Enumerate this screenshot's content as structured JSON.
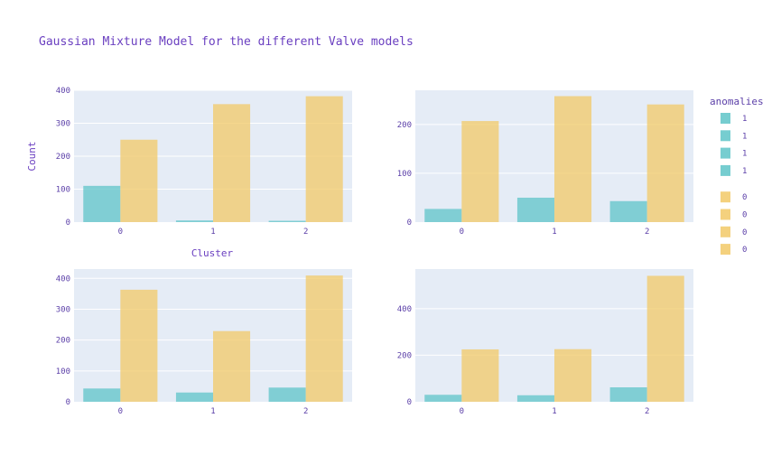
{
  "chart_data": {
    "type": "bar",
    "title": "Gaussian Mixture Model for the different Valve models",
    "xlabel": "Cluster",
    "ylabel": "Count",
    "barmode": "group",
    "legend": {
      "title": "anomalies",
      "placement": "right",
      "entries": [
        {
          "label": "1",
          "color": "#5ec4c8"
        },
        {
          "label": "1",
          "color": "#5ec4c8"
        },
        {
          "label": "1",
          "color": "#5ec4c8"
        },
        {
          "label": "1",
          "color": "#5ec4c8"
        },
        {
          "label": "0",
          "color": "#f2c967"
        },
        {
          "label": "0",
          "color": "#f2c967"
        },
        {
          "label": "0",
          "color": "#f2c967"
        },
        {
          "label": "0",
          "color": "#f2c967"
        }
      ]
    },
    "colors": {
      "anomaly_1": "#5ec4c8",
      "anomaly_0": "#f2c967",
      "plot_bg": "#e5ecf6",
      "text": "#5b3fa8"
    },
    "grid": true,
    "subplots": [
      {
        "categories": [
          "0",
          "1",
          "2"
        ],
        "ylim": [
          0,
          400
        ],
        "yticks": [
          0,
          100,
          200,
          300,
          400
        ],
        "series": [
          {
            "name": "1",
            "values": [
              110,
              5,
              4
            ]
          },
          {
            "name": "0",
            "values": [
              250,
              358,
              382
            ]
          }
        ]
      },
      {
        "categories": [
          "0",
          "1",
          "2"
        ],
        "ylim": [
          0,
          270
        ],
        "yticks": [
          0,
          100,
          200
        ],
        "series": [
          {
            "name": "1",
            "values": [
              27,
              50,
              43
            ]
          },
          {
            "name": "0",
            "values": [
              207,
              258,
              241
            ]
          }
        ]
      },
      {
        "categories": [
          "0",
          "1",
          "2"
        ],
        "ylim": [
          0,
          430
        ],
        "yticks": [
          0,
          100,
          200,
          300,
          400
        ],
        "series": [
          {
            "name": "1",
            "values": [
              43,
              30,
              46
            ]
          },
          {
            "name": "0",
            "values": [
              363,
              229,
              409
            ]
          }
        ]
      },
      {
        "categories": [
          "0",
          "1",
          "2"
        ],
        "ylim": [
          0,
          570
        ],
        "yticks": [
          0,
          200,
          400
        ],
        "series": [
          {
            "name": "1",
            "values": [
              30,
              28,
              62
            ]
          },
          {
            "name": "0",
            "values": [
              225,
              226,
              541
            ]
          }
        ]
      }
    ]
  }
}
